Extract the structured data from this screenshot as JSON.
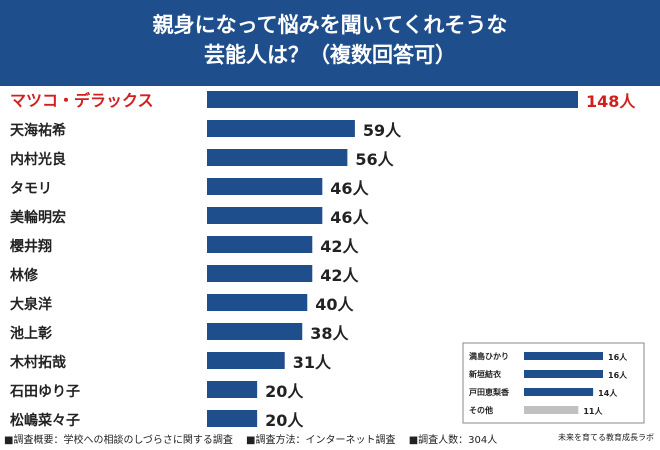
{
  "header": {
    "title": "親身になって悩みを聞いてくれそうな\n芸能人は？（複数回答可）"
  },
  "colors": {
    "header_bg": "#1f4e8c",
    "bar": "#1f4e8c",
    "highlight_text": "#d11f1f",
    "other_bar": "#c0c0c0"
  },
  "chart_data": [
    {
      "type": "bar",
      "orientation": "horizontal",
      "title": "親身になって悩みを聞いてくれそうな芸能人は？（複数回答可）",
      "categories": [
        "マツコ・デラックス",
        "天海祐希",
        "内村光良",
        "タモリ",
        "美輪明宏",
        "櫻井翔",
        "林修",
        "大泉洋",
        "池上彰",
        "木村拓哉",
        "石田ゆり子",
        "松嶋菜々子"
      ],
      "values": [
        148,
        59,
        56,
        46,
        46,
        42,
        42,
        40,
        38,
        31,
        20,
        20
      ],
      "value_labels": [
        "148人",
        "59人",
        "56人",
        "46人",
        "46人",
        "42人",
        "42人",
        "40人",
        "38人",
        "31人",
        "20人",
        "20人"
      ],
      "highlight": "マツコ・デラックス",
      "xlim": [
        0,
        148
      ],
      "grid": false,
      "legend": "none"
    },
    {
      "type": "bar",
      "orientation": "horizontal",
      "placement": "bottom-right inset",
      "categories": [
        "満島ひかり",
        "新垣結衣",
        "戸田恵梨香",
        "その他"
      ],
      "values": [
        16,
        16,
        14,
        11
      ],
      "value_labels": [
        "16人",
        "16人",
        "14人",
        "11人"
      ],
      "xlim": [
        0,
        16
      ],
      "grid": false
    }
  ],
  "footer": {
    "overview": "■調査概要：学校への相談のしづらさに関する調査",
    "method": "■調査方法：インターネット調査",
    "count": "■調査人数：304人",
    "brand": "未来を育てる教育成長ラボ"
  }
}
